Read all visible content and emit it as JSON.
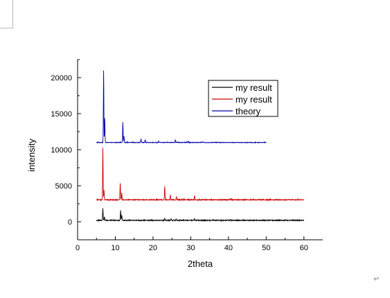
{
  "page": {
    "return_mark": "↵"
  },
  "chart_data": {
    "type": "line",
    "title": "",
    "xlabel": "2theta",
    "ylabel": "intensity",
    "xlim": [
      0,
      65
    ],
    "ylim": [
      -2500,
      22500
    ],
    "xticks": [
      0,
      10,
      20,
      30,
      40,
      50,
      60
    ],
    "yticks": [
      0,
      5000,
      10000,
      15000,
      20000
    ],
    "legend_position": "top-right",
    "grid": false,
    "series": [
      {
        "name": "my result",
        "color": "#000000",
        "x_range": [
          5,
          60
        ],
        "baseline": 200,
        "noise": 60,
        "peaks": [
          {
            "x": 6.7,
            "y": 1900
          },
          {
            "x": 7.1,
            "y": 700
          },
          {
            "x": 11.4,
            "y": 1600
          },
          {
            "x": 11.7,
            "y": 900
          },
          {
            "x": 23.1,
            "y": 500
          },
          {
            "x": 24.8,
            "y": 400
          },
          {
            "x": 26.1,
            "y": 350
          },
          {
            "x": 31.0,
            "y": 400
          },
          {
            "x": 40.6,
            "y": 300
          }
        ]
      },
      {
        "name": "my result",
        "color": "#cc0000",
        "x_range": [
          5,
          60
        ],
        "baseline": 3050,
        "noise": 60,
        "peaks": [
          {
            "x": 6.7,
            "y": 10300
          },
          {
            "x": 7.0,
            "y": 4400
          },
          {
            "x": 11.3,
            "y": 5400
          },
          {
            "x": 11.7,
            "y": 4000
          },
          {
            "x": 23.1,
            "y": 5000
          },
          {
            "x": 24.6,
            "y": 3700
          },
          {
            "x": 26.2,
            "y": 3500
          },
          {
            "x": 31.0,
            "y": 3600
          },
          {
            "x": 40.6,
            "y": 3300
          }
        ]
      },
      {
        "name": "theory",
        "color": "#0000aa",
        "x_range": [
          5,
          50
        ],
        "baseline": 11000,
        "noise": 40,
        "peaks": [
          {
            "x": 6.9,
            "y": 21000
          },
          {
            "x": 7.2,
            "y": 14400
          },
          {
            "x": 12.0,
            "y": 13800
          },
          {
            "x": 12.3,
            "y": 11900
          },
          {
            "x": 16.8,
            "y": 11500
          },
          {
            "x": 17.9,
            "y": 11400
          },
          {
            "x": 21.5,
            "y": 11200
          },
          {
            "x": 25.9,
            "y": 11350
          },
          {
            "x": 29.3,
            "y": 11200
          },
          {
            "x": 33.0,
            "y": 11150
          }
        ]
      }
    ]
  }
}
